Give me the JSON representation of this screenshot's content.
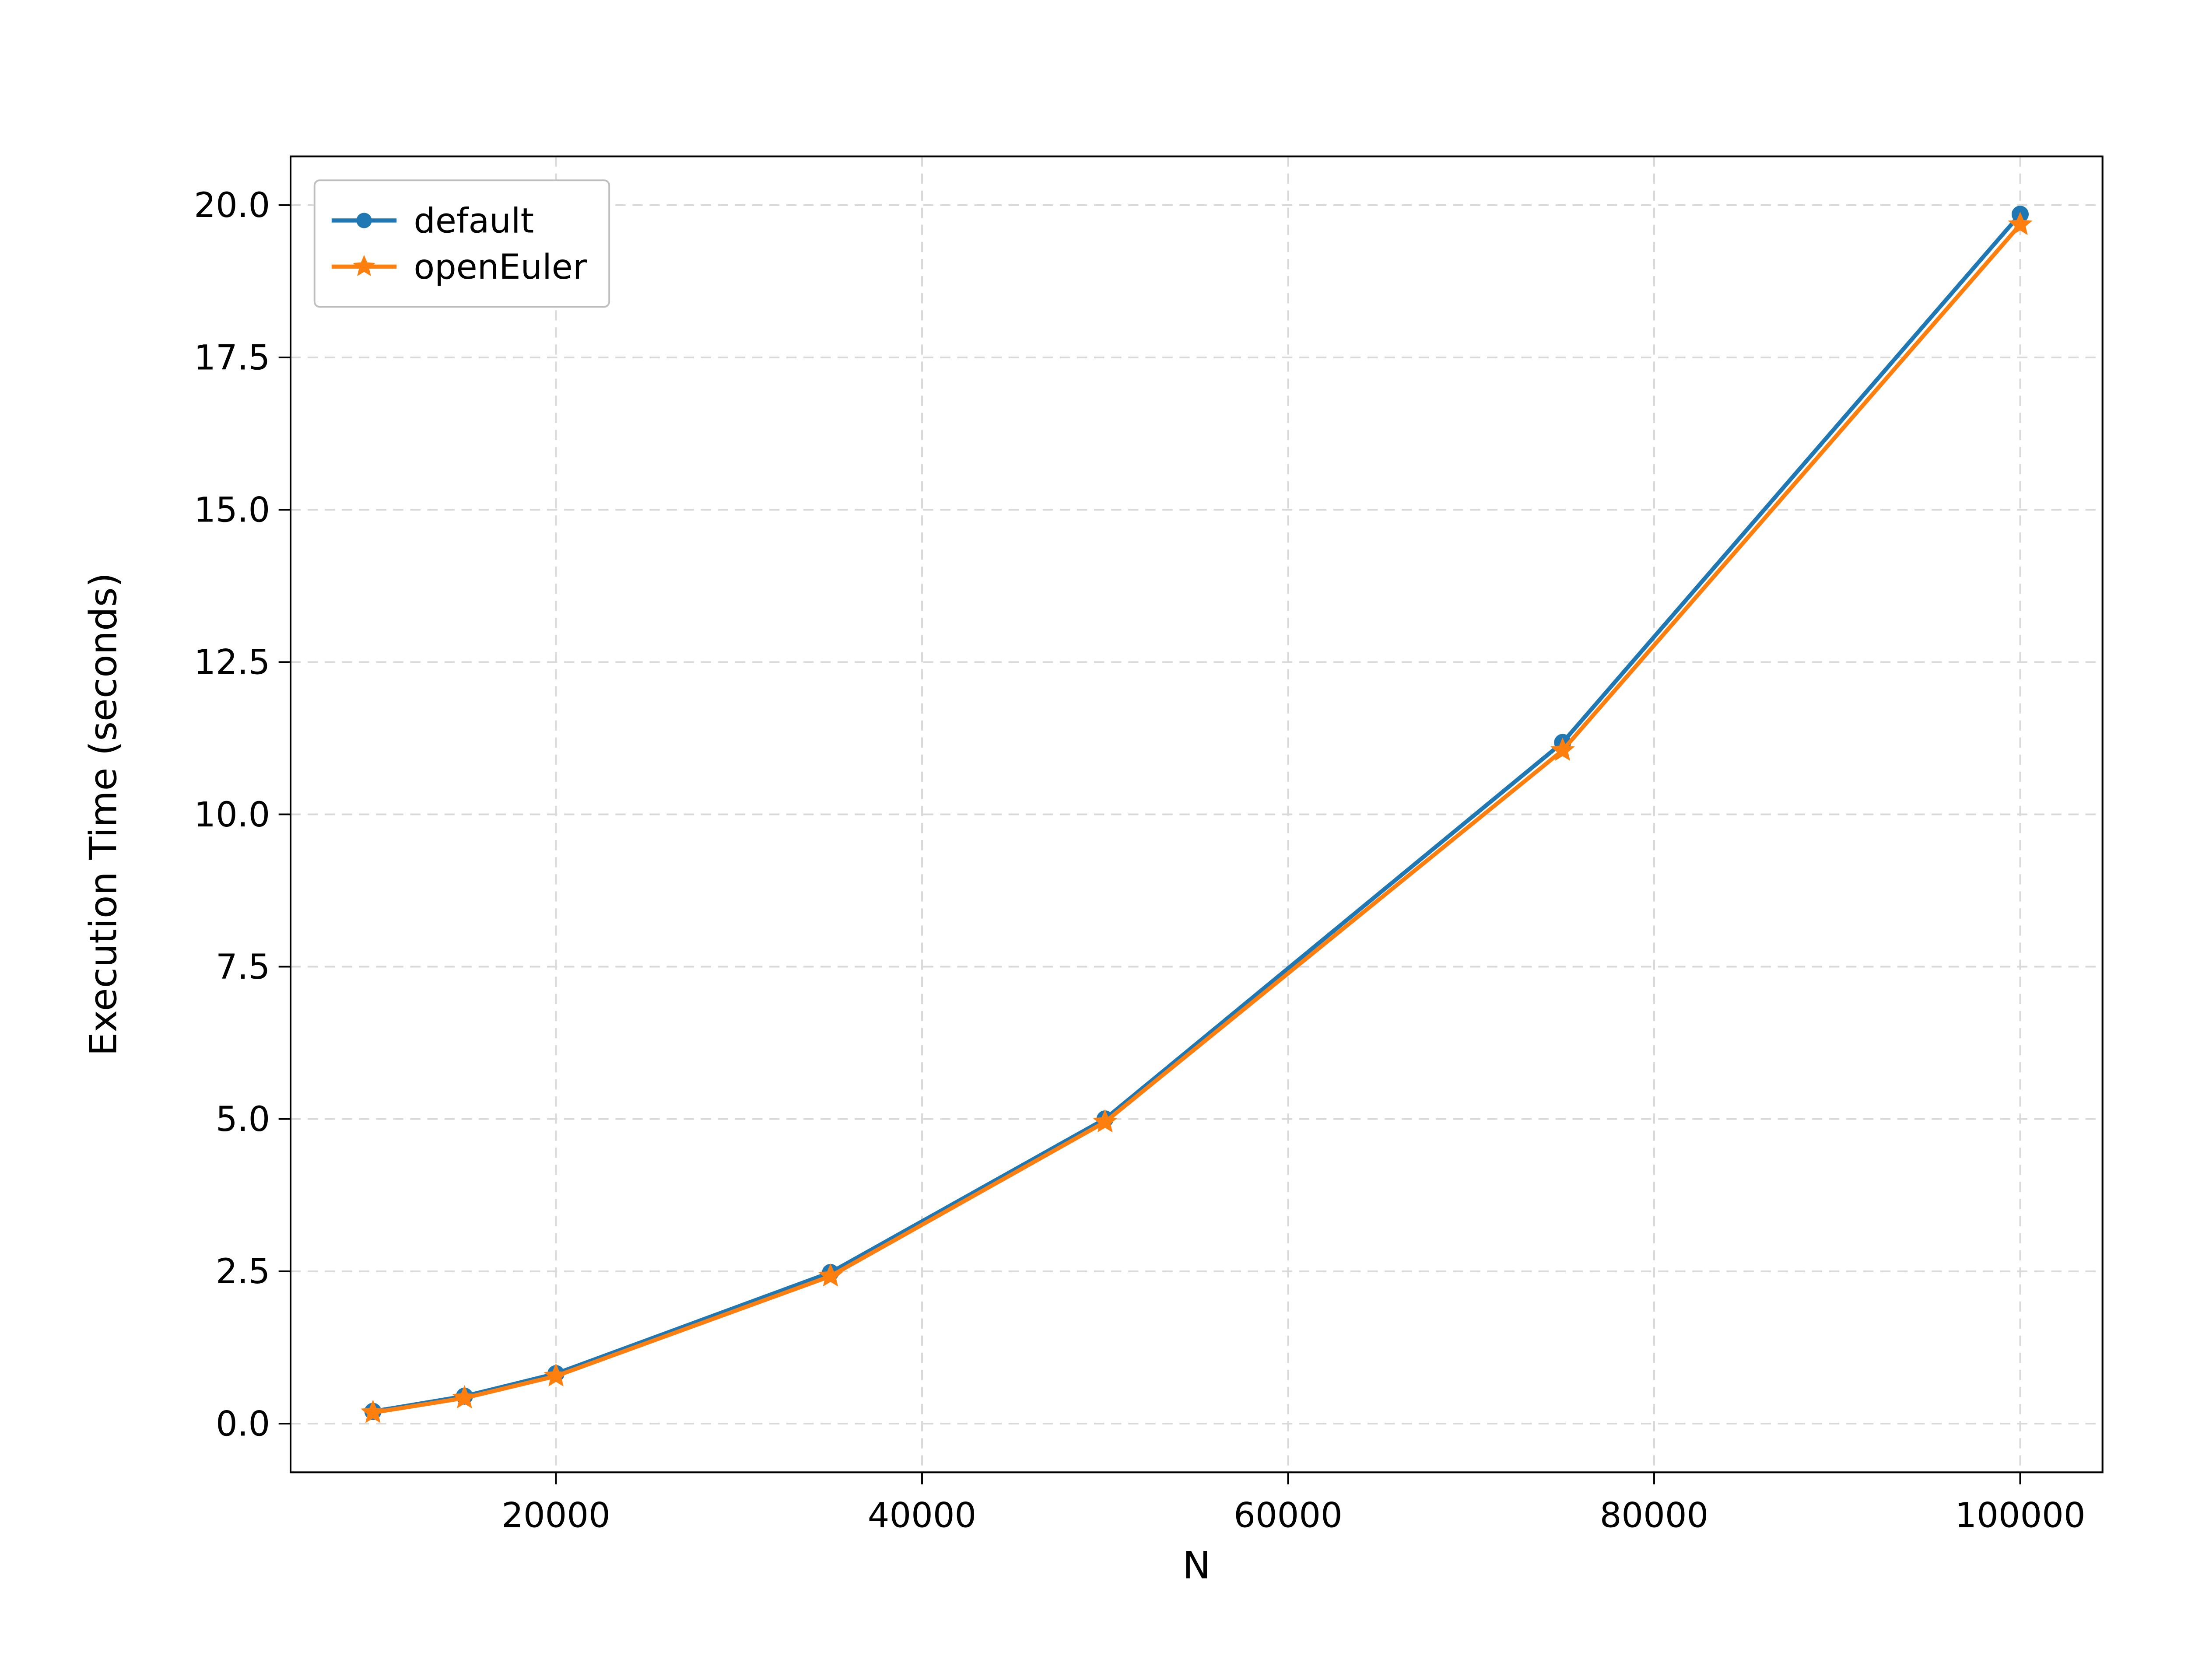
{
  "chart": {
    "type": "line",
    "aspect_ratio": 1.3333,
    "background_color": "#ffffff",
    "plot_background_color": "#ffffff",
    "spine_color": "#000000",
    "spine_width": 1.0,
    "grid_color": "#d9d9d9",
    "grid_dash": "6,4",
    "grid_width": 1.0,
    "x": {
      "label": "N",
      "label_fontsize": 22,
      "tick_fontsize": 20,
      "tick_color": "#000000",
      "domain": [
        5500,
        104500
      ],
      "ticks": [
        20000,
        40000,
        60000,
        80000,
        100000
      ]
    },
    "y": {
      "label": "Execution Time (seconds)",
      "label_fontsize": 22,
      "tick_fontsize": 20,
      "tick_color": "#000000",
      "domain": [
        -0.8,
        20.8
      ],
      "ticks": [
        0.0,
        2.5,
        5.0,
        7.5,
        10.0,
        12.5,
        15.0,
        17.5,
        20.0
      ]
    },
    "series": [
      {
        "key": "default",
        "label": "default",
        "color": "#1f77b4",
        "line_width": 2.4,
        "marker": "circle",
        "marker_size": 9,
        "x": [
          10000,
          15000,
          20000,
          35000,
          50000,
          75000,
          100000
        ],
        "y": [
          0.2,
          0.45,
          0.82,
          2.48,
          5.0,
          11.18,
          19.85
        ]
      },
      {
        "key": "openEuler",
        "label": "openEuler",
        "color": "#ff7f0e",
        "line_width": 2.4,
        "marker": "star",
        "marker_size": 11,
        "x": [
          10000,
          15000,
          20000,
          35000,
          50000,
          75000,
          100000
        ],
        "y": [
          0.18,
          0.42,
          0.78,
          2.42,
          4.95,
          11.05,
          19.68
        ]
      }
    ],
    "legend": {
      "location": "upper-left",
      "frame_color": "#bfbfbf",
      "frame_width": 1.0,
      "background": "#ffffff",
      "fontsize": 20,
      "padding": 10
    }
  }
}
